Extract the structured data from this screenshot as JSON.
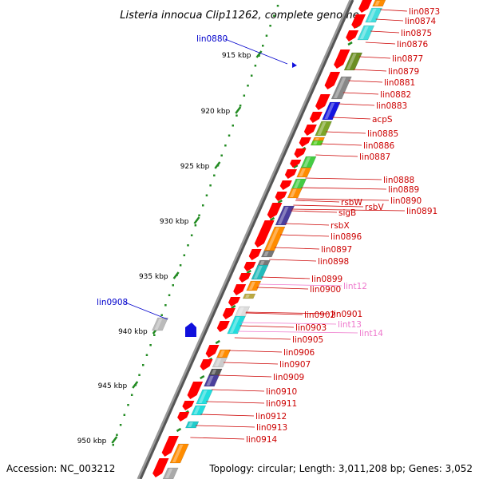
{
  "title": "Listeria innocua Clip11262, complete genome",
  "footer": {
    "accession": "Accession: NC_003212",
    "summary": "Topology: circular; Length: 3,011,208 bp; Genes: 3,052"
  },
  "colors": {
    "forward_gene": "#ff0000",
    "label_red": "#cc0000",
    "label_blue": "#0000cc",
    "label_pink": "#ee77cc",
    "backbone": "#777777",
    "ticks": "#228b22"
  },
  "scale_labels": [
    "915 kbp",
    "920 kbp",
    "925 kbp",
    "930 kbp",
    "935 kbp",
    "940 kbp",
    "945 kbp",
    "950 kbp"
  ],
  "gene_labels_right": [
    "lin0873",
    "lin0874",
    "lin0875",
    "lin0876",
    "lin0877",
    "lin0879",
    "lin0881",
    "lin0882",
    "lin0883",
    "acpS",
    "lin0885",
    "lin0886",
    "lin0887",
    "lin0888",
    "lin0889",
    "lin0890",
    "rsbW",
    "rsbV",
    "lin0891",
    "sigB",
    "rsbX",
    "lin0896",
    "lin0897",
    "lin0898",
    "lin0899",
    "lint12",
    "lin0900",
    "lin0901",
    "lin0902",
    "lint13",
    "lin0903",
    "lint14",
    "lin0905",
    "lin0906",
    "lin0907",
    "lin0909",
    "lin0910",
    "lin0911",
    "lin0912",
    "lin0913",
    "lin0914"
  ],
  "gene_labels_left": [
    "lin0880",
    "lin0908"
  ]
}
